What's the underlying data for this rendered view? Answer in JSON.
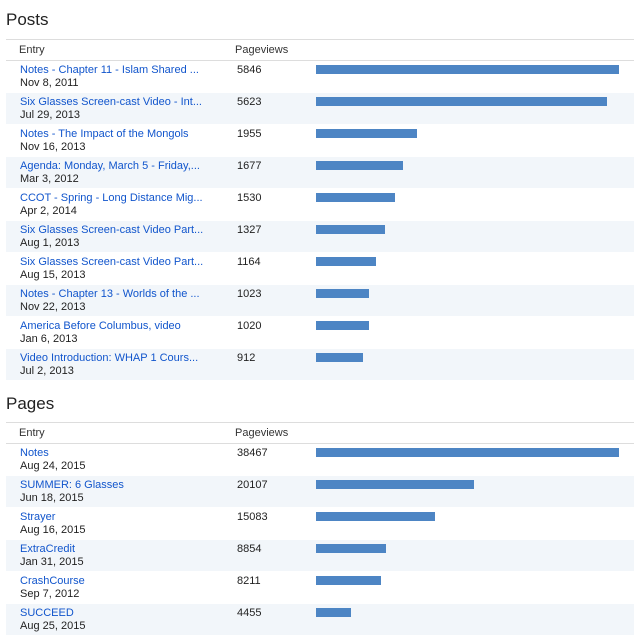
{
  "posts": {
    "title": "Posts",
    "header": {
      "entry": "Entry",
      "pageviews": "Pageviews"
    },
    "bar_color": "#4d85c4",
    "rows": [
      {
        "title": "Notes - Chapter 11 - Islam Shared ...",
        "date": "Nov 8, 2011",
        "views": "5846",
        "value": 5846
      },
      {
        "title": "Six Glasses Screen-cast Video - Int...",
        "date": "Jul 29, 2013",
        "views": "5623",
        "value": 5623
      },
      {
        "title": "Notes - The Impact of the Mongols",
        "date": "Nov 16, 2013",
        "views": "1955",
        "value": 1955
      },
      {
        "title": "Agenda: Monday, March 5 - Friday,...",
        "date": "Mar 3, 2012",
        "views": "1677",
        "value": 1677
      },
      {
        "title": "CCOT - Spring - Long Distance Mig...",
        "date": "Apr 2, 2014",
        "views": "1530",
        "value": 1530
      },
      {
        "title": "Six Glasses Screen-cast Video Part...",
        "date": "Aug 1, 2013",
        "views": "1327",
        "value": 1327
      },
      {
        "title": "Six Glasses Screen-cast Video Part...",
        "date": "Aug 15, 2013",
        "views": "1164",
        "value": 1164
      },
      {
        "title": "Notes - Chapter 13 - Worlds of the ...",
        "date": "Nov 22, 2013",
        "views": "1023",
        "value": 1023
      },
      {
        "title": "America Before Columbus, video",
        "date": "Jan 6, 2013",
        "views": "1020",
        "value": 1020
      },
      {
        "title": "Video Introduction: WHAP 1 Cours...",
        "date": "Jul 2, 2013",
        "views": "912",
        "value": 912
      }
    ]
  },
  "pages": {
    "title": "Pages",
    "header": {
      "entry": "Entry",
      "pageviews": "Pageviews"
    },
    "bar_color": "#4d85c4",
    "rows": [
      {
        "title": "Notes",
        "date": "Aug 24, 2015",
        "views": "38467",
        "value": 38467
      },
      {
        "title": "SUMMER: 6 Glasses",
        "date": "Jun 18, 2015",
        "views": "20107",
        "value": 20107
      },
      {
        "title": "Strayer",
        "date": "Aug 16, 2015",
        "views": "15083",
        "value": 15083
      },
      {
        "title": "ExtraCredit",
        "date": "Jan 31, 2015",
        "views": "8854",
        "value": 8854
      },
      {
        "title": "CrashCourse",
        "date": "Sep 7, 2012",
        "views": "8211",
        "value": 8211
      },
      {
        "title": "SUCCEED",
        "date": "Aug 25, 2015",
        "views": "4455",
        "value": 4455
      }
    ]
  }
}
